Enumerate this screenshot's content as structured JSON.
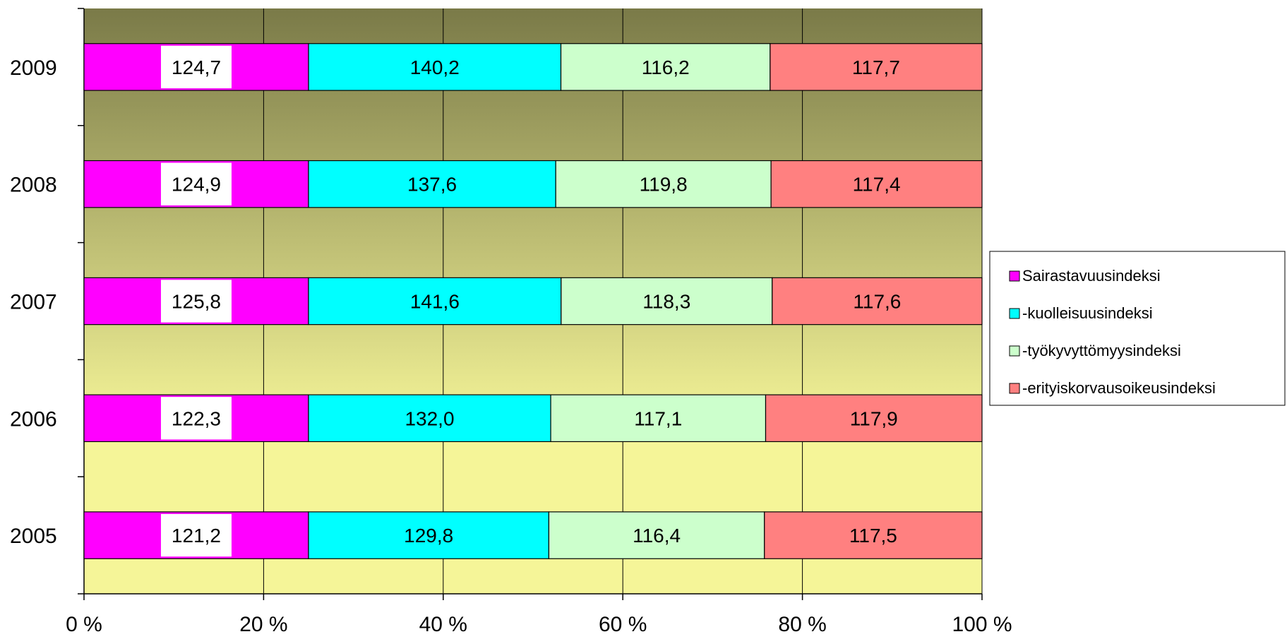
{
  "chart_data": {
    "type": "bar",
    "orientation": "horizontal",
    "stacked": "percent",
    "categories": [
      "2009",
      "2008",
      "2007",
      "2006",
      "2005"
    ],
    "series": [
      {
        "name": "Sairastavuusindeksi",
        "color": "#ff00ff",
        "values": [
          124.7,
          124.9,
          125.8,
          122.3,
          121.2
        ],
        "labels": [
          "124,7",
          "124,9",
          "125,8",
          "122,3",
          "121,2"
        ]
      },
      {
        "name": "-kuolleisuusindeksi",
        "color": "#00ffff",
        "values": [
          140.2,
          137.6,
          141.6,
          132.0,
          129.8
        ],
        "labels": [
          "140,2",
          "137,6",
          "141,6",
          "132,0",
          "129,8"
        ]
      },
      {
        "name": "-työkyvyttömyysindeksi",
        "color": "#ccffcc",
        "values": [
          116.2,
          119.8,
          118.3,
          117.1,
          116.4
        ],
        "labels": [
          "116,2",
          "119,8",
          "118,3",
          "117,1",
          "116,4"
        ]
      },
      {
        "name": "-erityiskorvausoikeusindeksi",
        "color": "#ff8080",
        "values": [
          117.7,
          117.4,
          117.6,
          117.9,
          117.5
        ],
        "labels": [
          "117,7",
          "117,4",
          "117,6",
          "117,9",
          "117,5"
        ]
      }
    ],
    "xticks": [
      "0 %",
      "20 %",
      "40 %",
      "60 %",
      "80 %",
      "100 %"
    ],
    "xlim": [
      0,
      100
    ],
    "grid": true,
    "legend_position": "right",
    "background_gradient": [
      "#7a7a48",
      "#f5f598"
    ]
  }
}
